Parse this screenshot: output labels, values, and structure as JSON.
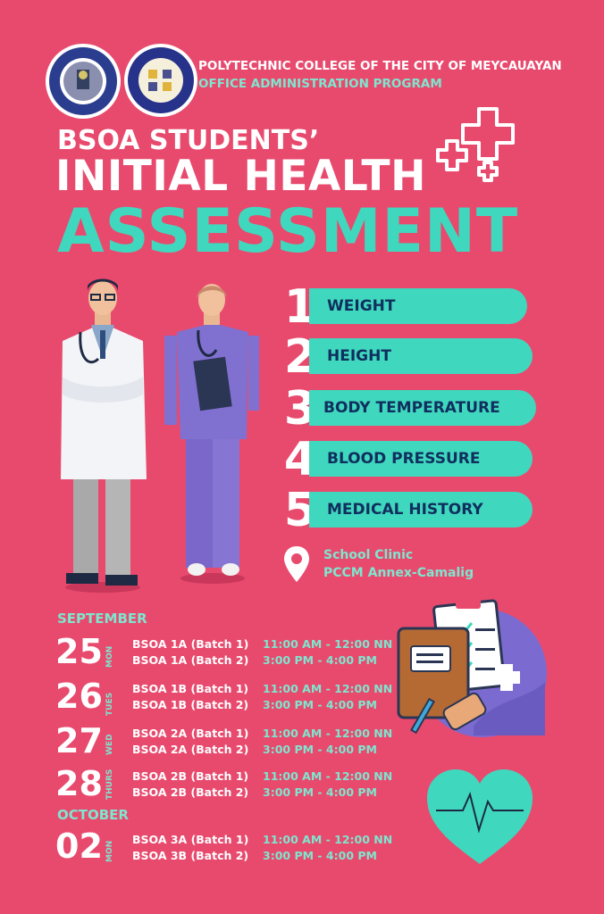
{
  "header": {
    "institution": "POLYTECHNIC COLLEGE OF THE CITY OF MEYCAUAYAN",
    "program": "OFFICE ADMINISTRATION PROGRAM"
  },
  "title": {
    "line1": "BSOA STUDENTS’",
    "line2": "INITIAL HEALTH",
    "line3": "ASSESSMENT"
  },
  "checks": [
    {
      "num": "1",
      "label": "WEIGHT"
    },
    {
      "num": "2",
      "label": "HEIGHT"
    },
    {
      "num": "3",
      "label": "BODY TEMPERATURE"
    },
    {
      "num": "4",
      "label": "BLOOD PRESSURE"
    },
    {
      "num": "5",
      "label": "MEDICAL HISTORY"
    }
  ],
  "location": {
    "line1": "School Clinic",
    "line2": "PCCM Annex-Camalig"
  },
  "schedule": {
    "month1": "SEPTEMBER",
    "month2": "OCTOBER",
    "days": [
      {
        "day": "25",
        "dow": "MON",
        "b1": "BSOA 1A (Batch 1)",
        "t1": "11:00 AM - 12:00 NN",
        "b2": "BSOA 1A (Batch 2)",
        "t2": "3:00 PM - 4:00 PM"
      },
      {
        "day": "26",
        "dow": "TUES",
        "b1": "BSOA 1B (Batch 1)",
        "t1": "11:00 AM - 12:00 NN",
        "b2": "BSOA 1B (Batch 2)",
        "t2": "3:00 PM - 4:00 PM"
      },
      {
        "day": "27",
        "dow": "WED",
        "b1": "BSOA 2A (Batch 1)",
        "t1": "11:00 AM - 12:00 NN",
        "b2": "BSOA 2A (Batch 2)",
        "t2": "3:00 PM - 4:00 PM"
      },
      {
        "day": "28",
        "dow": "THURS",
        "b1": "BSOA 2B (Batch 1)",
        "t1": "11:00 AM - 12:00 NN",
        "b2": "BSOA 2B (Batch 2)",
        "t2": "3:00 PM - 4:00 PM"
      },
      {
        "day": "02",
        "dow": "MON",
        "b1": "BSOA 3A (Batch 1)",
        "t1": "11:00 AM - 12:00 NN",
        "b2": "BSOA 3B (Batch 2)",
        "t2": "3:00 PM - 4:00 PM"
      }
    ]
  },
  "colors": {
    "background": "#e84a6e",
    "accent": "#3fd8be",
    "navy": "#102f5e"
  },
  "icons": [
    "college-logo",
    "program-logo",
    "medical-cross-icon",
    "doctor-illustration",
    "nurse-illustration",
    "location-pin-icon",
    "clipboard-folder-illustration",
    "heart-pulse-icon"
  ]
}
